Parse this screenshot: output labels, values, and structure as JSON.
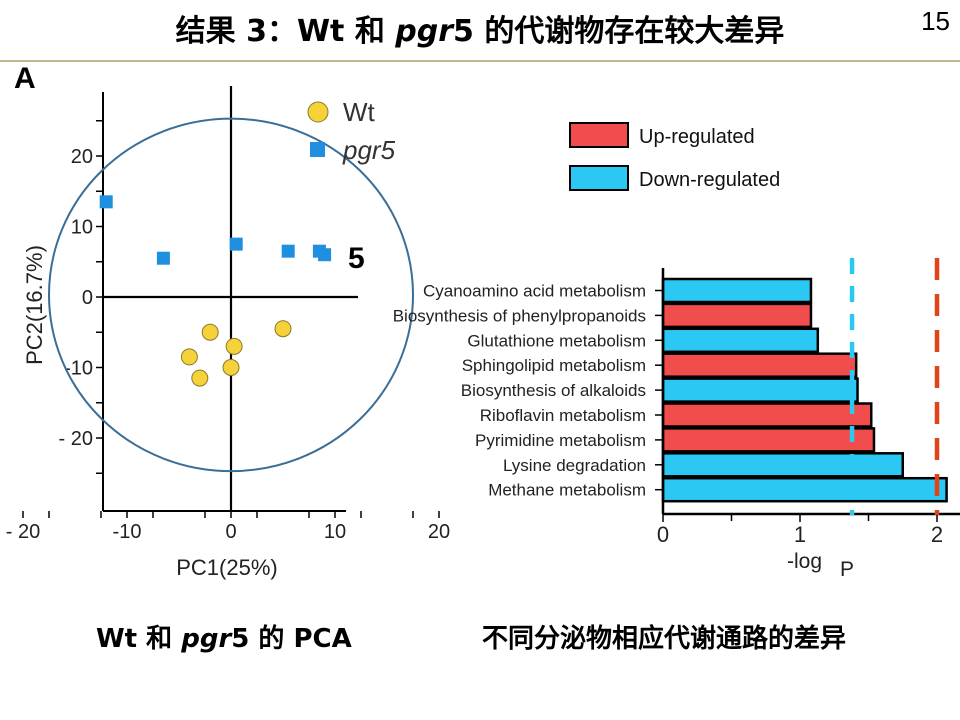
{
  "slide": {
    "title_pre": "结果 3：Wt 和 ",
    "title_em": "pgr",
    "title_post": "5 的代谢物存在较大差异",
    "page_number": "15",
    "panel_label": "A",
    "caption_left_pre": "Wt 和 ",
    "caption_left_em": "pgr",
    "caption_left_post": "5 的 PCA",
    "caption_right": "不同分泌物相应代谢通路的差异",
    "stray_glyph": "5"
  },
  "colors": {
    "wt": "#f5d13a",
    "pgr5": "#1f8fe0",
    "ellipse": "#3b6e96",
    "up": "#f24d4d",
    "down": "#2ac8f2",
    "threshold_1": "#2ac8f2",
    "threshold_2": "#e0431a"
  },
  "chart_data": [
    {
      "type": "scatter",
      "xlabel": "PC1(25%)",
      "ylabel": "PC2(16.7%)",
      "xlim": [
        -20,
        20
      ],
      "ylim": [
        -20,
        20
      ],
      "x_ticks": [
        -20,
        -10,
        0,
        10,
        20
      ],
      "y_ticks": [
        20,
        10,
        0,
        -10,
        -20
      ],
      "x_tick_labels": [
        "- 20",
        "-10",
        "0",
        "10",
        "20"
      ],
      "y_tick_labels": [
        "20",
        "10",
        "0",
        "-10",
        "- 20"
      ],
      "legend_placement": "top-right",
      "series": [
        {
          "name": "Wt",
          "marker": "circle",
          "points": [
            [
              -2,
              -5
            ],
            [
              -4,
              -8.5
            ],
            [
              0.3,
              -7
            ],
            [
              5,
              -4.5
            ],
            [
              -3,
              -11.5
            ],
            [
              0,
              -10
            ]
          ]
        },
        {
          "name": "pgr5",
          "marker": "square",
          "points": [
            [
              -12,
              13.5
            ],
            [
              -6.5,
              5.5
            ],
            [
              0.5,
              7.5
            ],
            [
              5.5,
              6.5
            ],
            [
              8.5,
              6.5
            ],
            [
              9,
              6
            ]
          ]
        }
      ],
      "ellipse": {
        "cx": 0,
        "cy": 0.3,
        "rx": 17.5,
        "ry": 25
      }
    },
    {
      "type": "bar",
      "orientation": "horizontal",
      "xlabel": "-log P",
      "x_ticks": [
        0,
        1,
        2
      ],
      "xlim": [
        0,
        2.2
      ],
      "categories": [
        "Cyanoamino acid metabolism",
        "Biosynthesis of phenylpropanoids",
        "Glutathione metabolism",
        "Sphingolipid metabolism",
        "Biosynthesis of alkaloids",
        "Riboflavin metabolism",
        "Pyrimidine metabolism",
        "Lysine degradation",
        "Methane metabolism"
      ],
      "values": [
        1.08,
        1.08,
        1.13,
        1.41,
        1.42,
        1.52,
        1.54,
        1.75,
        2.07
      ],
      "regulation": [
        "down",
        "up",
        "down",
        "up",
        "down",
        "up",
        "up",
        "down",
        "down"
      ],
      "legend": [
        {
          "key": "up",
          "label": "Up-regulated"
        },
        {
          "key": "down",
          "label": "Down-regulated"
        }
      ],
      "legend_placement": "top",
      "thresholds": [
        1.38,
        2.0
      ]
    }
  ]
}
